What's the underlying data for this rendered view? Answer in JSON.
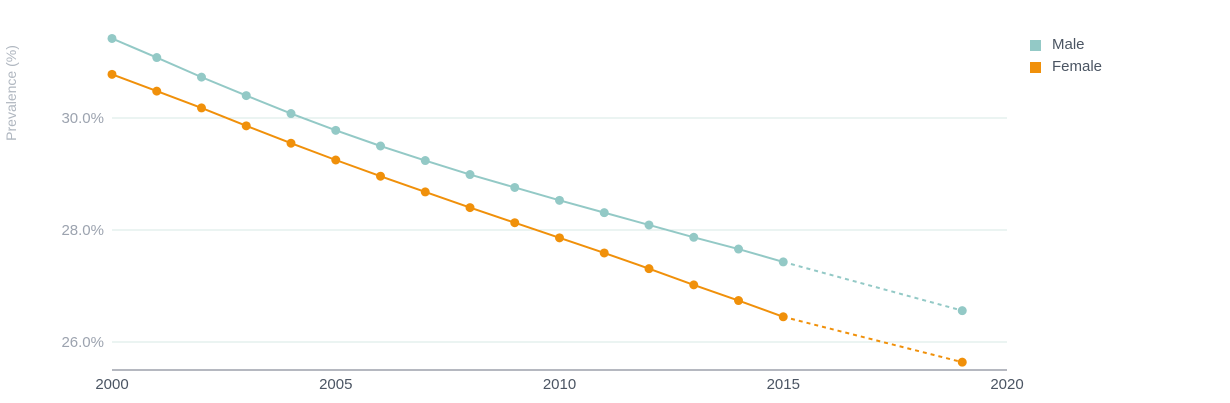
{
  "chart_data": {
    "type": "line",
    "title": "",
    "ylabel": "Prevalence (%)",
    "xlabel": "",
    "xlim": [
      2000,
      2020
    ],
    "ylim": [
      25.5,
      31.6
    ],
    "x_ticks": [
      2000,
      2005,
      2010,
      2015,
      2020
    ],
    "x_tick_labels": [
      "2000",
      "2005",
      "2010",
      "2015",
      "2020"
    ],
    "y_ticks": [
      26.0,
      28.0,
      30.0
    ],
    "y_tick_labels": [
      "26.0%",
      "28.0%",
      "30.0%"
    ],
    "grid": true,
    "legend_position": "top-right",
    "series": [
      {
        "name": "Male",
        "color": "#93c9c6",
        "observed": {
          "x": [
            2000,
            2001,
            2002,
            2003,
            2004,
            2005,
            2006,
            2007,
            2008,
            2009,
            2010,
            2011,
            2012,
            2013,
            2014,
            2015
          ],
          "y": [
            31.42,
            31.08,
            30.73,
            30.4,
            30.08,
            29.78,
            29.5,
            29.24,
            28.99,
            28.76,
            28.53,
            28.31,
            28.09,
            27.87,
            27.66,
            27.43
          ]
        },
        "projected": {
          "x": [
            2015,
            2019
          ],
          "y": [
            27.43,
            26.56
          ]
        }
      },
      {
        "name": "Female",
        "color": "#f0900a",
        "observed": {
          "x": [
            2000,
            2001,
            2002,
            2003,
            2004,
            2005,
            2006,
            2007,
            2008,
            2009,
            2010,
            2011,
            2012,
            2013,
            2014,
            2015
          ],
          "y": [
            30.78,
            30.48,
            30.18,
            29.86,
            29.55,
            29.25,
            28.96,
            28.68,
            28.4,
            28.13,
            27.86,
            27.59,
            27.31,
            27.02,
            26.74,
            26.45
          ]
        },
        "projected": {
          "x": [
            2015,
            2019
          ],
          "y": [
            26.45,
            25.64
          ]
        }
      }
    ]
  },
  "colors": {
    "gridline": "#d7e9e6",
    "axis_line": "#6b7280",
    "tick_label": "#9ca3af",
    "x_tick_label": "#4b5563",
    "axis_title": "#b0b7c0"
  }
}
